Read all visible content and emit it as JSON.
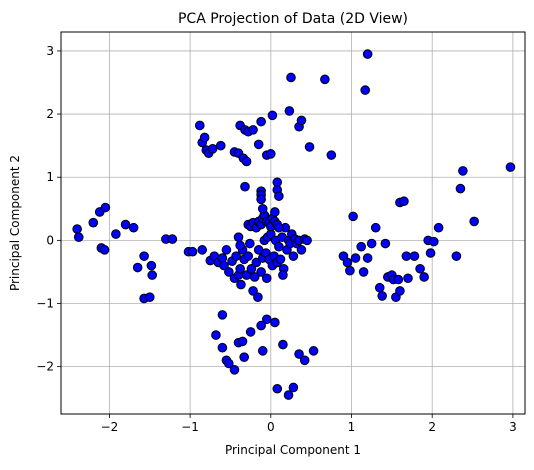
{
  "chart_data": {
    "type": "scatter",
    "title": "PCA Projection of Data (2D View)",
    "xlabel": "Principal Component 1",
    "ylabel": "Principal Component 2",
    "xlim": [
      -2.6,
      3.15
    ],
    "ylim": [
      -2.75,
      3.3
    ],
    "xticks": [
      -2,
      -1,
      0,
      1,
      2,
      3
    ],
    "yticks": [
      -2,
      -1,
      0,
      1,
      2,
      3
    ],
    "xtick_labels": [
      "−2",
      "−1",
      "0",
      "1",
      "2",
      "3"
    ],
    "ytick_labels": [
      "−2",
      "−1",
      "0",
      "1",
      "2",
      "3"
    ],
    "grid": true,
    "marker_color": "#0000ff",
    "marker_edge_color": "#000000",
    "points": [
      [
        -2.4,
        0.18
      ],
      [
        -2.38,
        0.05
      ],
      [
        -2.2,
        0.28
      ],
      [
        -2.12,
        0.45
      ],
      [
        -2.05,
        0.52
      ],
      [
        -2.1,
        -0.12
      ],
      [
        -2.06,
        -0.15
      ],
      [
        -1.92,
        0.1
      ],
      [
        -1.8,
        0.25
      ],
      [
        -1.7,
        0.2
      ],
      [
        -1.65,
        -0.43
      ],
      [
        -1.57,
        -0.25
      ],
      [
        -1.48,
        -0.4
      ],
      [
        -1.47,
        -0.55
      ],
      [
        -1.57,
        -0.92
      ],
      [
        -1.5,
        -0.9
      ],
      [
        -1.3,
        0.02
      ],
      [
        -1.22,
        0.02
      ],
      [
        -1.02,
        -0.18
      ],
      [
        -0.97,
        -0.18
      ],
      [
        -0.88,
        1.82
      ],
      [
        -0.85,
        1.55
      ],
      [
        -0.82,
        1.63
      ],
      [
        -0.8,
        1.43
      ],
      [
        -0.77,
        1.38
      ],
      [
        -0.72,
        1.45
      ],
      [
        -0.62,
        1.5
      ],
      [
        -0.45,
        1.4
      ],
      [
        -0.4,
        1.38
      ],
      [
        -0.38,
        1.82
      ],
      [
        -0.34,
        1.3
      ],
      [
        -0.3,
        1.25
      ],
      [
        -0.32,
        1.75
      ],
      [
        -0.28,
        1.72
      ],
      [
        -0.22,
        1.75
      ],
      [
        -0.15,
        1.52
      ],
      [
        -0.12,
        1.88
      ],
      [
        -0.05,
        1.35
      ],
      [
        0.02,
        1.98
      ],
      [
        0.0,
        1.37
      ],
      [
        0.23,
        2.05
      ],
      [
        0.25,
        2.58
      ],
      [
        0.35,
        1.8
      ],
      [
        0.38,
        1.9
      ],
      [
        0.48,
        1.48
      ],
      [
        0.67,
        2.55
      ],
      [
        0.75,
        1.35
      ],
      [
        1.17,
        2.38
      ],
      [
        1.2,
        2.95
      ],
      [
        -0.85,
        -0.15
      ],
      [
        -0.75,
        -0.32
      ],
      [
        -0.7,
        -0.25
      ],
      [
        -0.65,
        -0.35
      ],
      [
        -0.6,
        -0.28
      ],
      [
        -0.58,
        -0.4
      ],
      [
        -0.55,
        -0.15
      ],
      [
        -0.52,
        -0.5
      ],
      [
        -0.48,
        -0.33
      ],
      [
        -0.45,
        -0.6
      ],
      [
        -0.43,
        -0.25
      ],
      [
        -0.4,
        -0.55
      ],
      [
        -0.38,
        -0.45
      ],
      [
        -0.37,
        -0.7
      ],
      [
        -0.35,
        -0.15
      ],
      [
        -0.33,
        -0.3
      ],
      [
        -0.3,
        -0.55
      ],
      [
        -0.28,
        -0.25
      ],
      [
        -0.26,
        -0.05
      ],
      [
        -0.24,
        -0.45
      ],
      [
        -0.22,
        -0.8
      ],
      [
        -0.2,
        -0.58
      ],
      [
        -0.18,
        -0.35
      ],
      [
        -0.16,
        -0.9
      ],
      [
        -0.15,
        -0.15
      ],
      [
        -0.12,
        -0.5
      ],
      [
        -0.1,
        -0.28
      ],
      [
        -0.08,
        0.0
      ],
      [
        -0.06,
        -0.2
      ],
      [
        -0.04,
        0.05
      ],
      [
        -0.02,
        -0.3
      ],
      [
        0.0,
        0.1
      ],
      [
        0.02,
        -0.4
      ],
      [
        0.04,
        -0.25
      ],
      [
        0.06,
        0.0
      ],
      [
        0.08,
        -0.35
      ],
      [
        0.1,
        -0.1
      ],
      [
        0.12,
        -0.3
      ],
      [
        0.14,
        0.05
      ],
      [
        0.16,
        -0.45
      ],
      [
        0.18,
        0.2
      ],
      [
        0.2,
        -0.15
      ],
      [
        0.22,
        0.0
      ],
      [
        0.24,
        -0.05
      ],
      [
        0.26,
        0.1
      ],
      [
        0.28,
        -0.25
      ],
      [
        0.3,
        0.02
      ],
      [
        0.32,
        -0.05
      ],
      [
        0.35,
        0.0
      ],
      [
        0.38,
        -0.15
      ],
      [
        0.42,
        0.02
      ],
      [
        0.45,
        0.0
      ],
      [
        -0.4,
        0.05
      ],
      [
        -0.38,
        -0.08
      ],
      [
        -0.28,
        0.25
      ],
      [
        -0.25,
        0.22
      ],
      [
        -0.22,
        0.28
      ],
      [
        -0.18,
        0.2
      ],
      [
        -0.15,
        0.3
      ],
      [
        -0.12,
        0.25
      ],
      [
        -0.1,
        0.35
      ],
      [
        -0.08,
        0.4
      ],
      [
        -0.05,
        0.3
      ],
      [
        -0.02,
        0.28
      ],
      [
        0.0,
        0.22
      ],
      [
        0.02,
        0.35
      ],
      [
        0.05,
        0.3
      ],
      [
        0.08,
        0.25
      ],
      [
        0.1,
        0.2
      ],
      [
        -0.32,
        0.85
      ],
      [
        -0.12,
        0.78
      ],
      [
        -0.12,
        0.72
      ],
      [
        -0.12,
        0.65
      ],
      [
        0.08,
        0.92
      ],
      [
        0.08,
        0.8
      ],
      [
        0.1,
        0.7
      ],
      [
        0.05,
        0.45
      ],
      [
        -0.1,
        0.5
      ],
      [
        -0.05,
        -0.6
      ],
      [
        0.15,
        -0.55
      ],
      [
        -0.68,
        -1.5
      ],
      [
        -0.6,
        -1.7
      ],
      [
        -0.55,
        -1.9
      ],
      [
        -0.52,
        -1.95
      ],
      [
        -0.45,
        -2.05
      ],
      [
        -0.4,
        -1.62
      ],
      [
        -0.35,
        -1.6
      ],
      [
        -0.33,
        -1.85
      ],
      [
        -0.25,
        -1.45
      ],
      [
        -0.12,
        -1.35
      ],
      [
        -0.1,
        -1.75
      ],
      [
        -0.05,
        -1.25
      ],
      [
        0.05,
        -1.3
      ],
      [
        0.08,
        -2.35
      ],
      [
        0.15,
        -1.65
      ],
      [
        0.22,
        -2.45
      ],
      [
        0.28,
        -2.33
      ],
      [
        0.35,
        -1.8
      ],
      [
        0.42,
        -1.9
      ],
      [
        0.53,
        -1.75
      ],
      [
        -0.6,
        -1.18
      ],
      [
        0.9,
        -0.25
      ],
      [
        0.95,
        -0.35
      ],
      [
        0.98,
        -0.48
      ],
      [
        1.02,
        0.38
      ],
      [
        1.05,
        -0.28
      ],
      [
        1.12,
        -0.1
      ],
      [
        1.15,
        -0.5
      ],
      [
        1.2,
        -0.28
      ],
      [
        1.25,
        -0.05
      ],
      [
        1.3,
        0.2
      ],
      [
        1.35,
        -0.75
      ],
      [
        1.38,
        -0.88
      ],
      [
        1.42,
        -0.05
      ],
      [
        1.45,
        -0.58
      ],
      [
        1.5,
        -0.55
      ],
      [
        1.52,
        -0.62
      ],
      [
        1.55,
        -0.9
      ],
      [
        1.58,
        -0.62
      ],
      [
        1.6,
        -0.8
      ],
      [
        1.6,
        0.6
      ],
      [
        1.65,
        0.62
      ],
      [
        1.68,
        -0.25
      ],
      [
        1.7,
        -0.6
      ],
      [
        1.78,
        -0.25
      ],
      [
        1.85,
        -0.45
      ],
      [
        1.9,
        -0.58
      ],
      [
        1.95,
        0.0
      ],
      [
        1.98,
        -0.2
      ],
      [
        2.02,
        -0.02
      ],
      [
        2.08,
        0.2
      ],
      [
        2.3,
        -0.25
      ],
      [
        2.35,
        0.82
      ],
      [
        2.38,
        1.1
      ],
      [
        2.52,
        0.3
      ],
      [
        2.97,
        1.16
      ]
    ]
  }
}
